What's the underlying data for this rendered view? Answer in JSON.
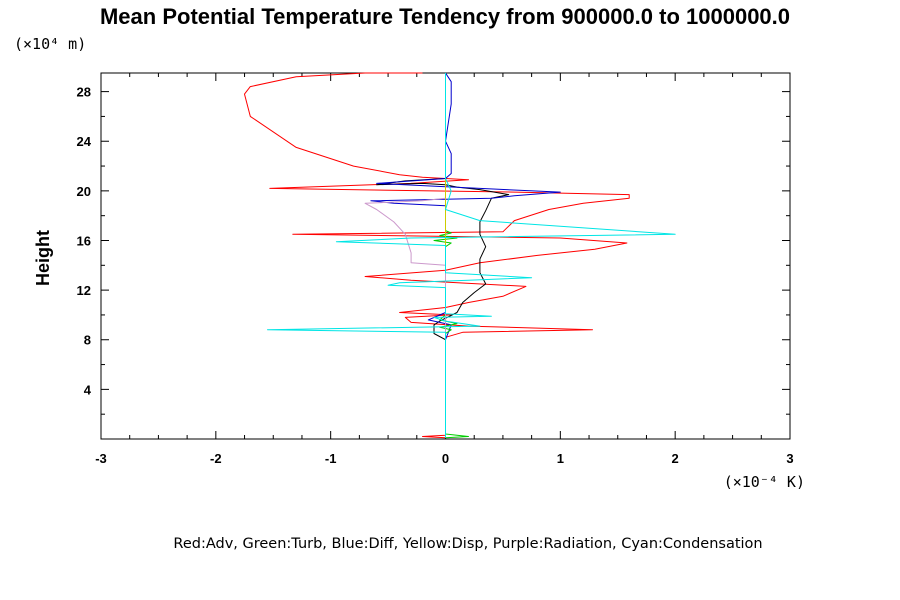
{
  "chart_data": {
    "type": "line",
    "title": "Mean Potential Temperature Tendency from 900000.0 to 1000000.0",
    "ylabel": "Height",
    "y_scale_label": "(×10⁴ m)",
    "x_scale_label": "(×10⁻⁴ K)",
    "legend_text": "Red:Adv, Green:Turb, Blue:Diff, Yellow:Disp, Purple:Radiation, Cyan:Condensation",
    "xlim": [
      -3,
      3
    ],
    "ylim": [
      0,
      29.5
    ],
    "x_ticks": [
      -3,
      -2,
      -1,
      0,
      1,
      2,
      3
    ],
    "x_tick_labels": [
      "-3",
      "-2",
      "-1",
      "0",
      "1",
      "2",
      "3"
    ],
    "y_ticks": [
      4,
      8,
      12,
      16,
      20,
      24,
      28
    ],
    "y_tick_labels": [
      "4",
      "8",
      "12",
      "16",
      "20",
      "24",
      "28"
    ],
    "grid": false,
    "series": [
      {
        "color": "#ff0000",
        "points": [
          [
            0.0,
            0.1
          ],
          [
            -0.2,
            0.2
          ],
          [
            0.0,
            0.3
          ],
          [
            0.0,
            5.5
          ],
          [
            0.0,
            8.2
          ],
          [
            0.15,
            8.6
          ],
          [
            1.28,
            8.8
          ],
          [
            0.2,
            9.1
          ],
          [
            -0.3,
            9.4
          ],
          [
            -0.35,
            9.8
          ],
          [
            0.05,
            10.0
          ],
          [
            -0.4,
            10.2
          ],
          [
            0.0,
            10.6
          ],
          [
            0.2,
            11.0
          ],
          [
            0.5,
            11.5
          ],
          [
            0.7,
            12.3
          ],
          [
            -0.3,
            12.8
          ],
          [
            -0.7,
            13.1
          ],
          [
            0.0,
            13.6
          ],
          [
            0.3,
            14.2
          ],
          [
            0.8,
            14.8
          ],
          [
            1.3,
            15.3
          ],
          [
            1.58,
            15.8
          ],
          [
            1.0,
            16.2
          ],
          [
            -1.33,
            16.5
          ],
          [
            0.5,
            16.7
          ],
          [
            0.6,
            17.6
          ],
          [
            0.9,
            18.5
          ],
          [
            1.2,
            19.0
          ],
          [
            1.6,
            19.4
          ],
          [
            1.6,
            19.7
          ],
          [
            0.6,
            19.9
          ],
          [
            -1.53,
            20.2
          ],
          [
            -0.3,
            20.6
          ],
          [
            0.2,
            20.9
          ],
          [
            -0.2,
            21.1
          ],
          [
            -0.4,
            21.3
          ],
          [
            -0.8,
            22.0
          ],
          [
            -1.3,
            23.5
          ],
          [
            -1.7,
            26.0
          ],
          [
            -1.75,
            27.8
          ],
          [
            -1.7,
            28.4
          ],
          [
            -1.3,
            29.2
          ],
          [
            -0.7,
            29.5
          ],
          [
            -0.2,
            29.6
          ]
        ]
      },
      {
        "color": "#000000",
        "points": [
          [
            0.0,
            0.1
          ],
          [
            0.0,
            5.5
          ],
          [
            0.0,
            8.0
          ],
          [
            -0.1,
            8.5
          ],
          [
            -0.1,
            9.2
          ],
          [
            -0.05,
            9.5
          ],
          [
            0.1,
            10.2
          ],
          [
            0.15,
            11.0
          ],
          [
            0.25,
            11.8
          ],
          [
            0.35,
            12.5
          ],
          [
            0.3,
            13.4
          ],
          [
            0.3,
            14.5
          ],
          [
            0.35,
            15.5
          ],
          [
            0.3,
            16.5
          ],
          [
            0.3,
            17.5
          ],
          [
            0.35,
            18.4
          ],
          [
            0.4,
            19.4
          ],
          [
            0.55,
            19.7
          ],
          [
            0.3,
            20.1
          ],
          [
            0.1,
            20.3
          ],
          [
            0.0,
            20.5
          ],
          [
            -0.2,
            20.6
          ],
          [
            -0.6,
            20.5
          ],
          [
            -0.35,
            20.8
          ],
          [
            0.0,
            21.0
          ],
          [
            0.0,
            29.6
          ]
        ]
      },
      {
        "color": "#0000cc",
        "points": [
          [
            0.0,
            0.1
          ],
          [
            0.0,
            5.5
          ],
          [
            0.0,
            8.0
          ],
          [
            0.05,
            9.2
          ],
          [
            -0.15,
            9.6
          ],
          [
            0.0,
            10.2
          ],
          [
            0.0,
            12.0
          ],
          [
            0.0,
            18.8
          ],
          [
            -0.45,
            19.0
          ],
          [
            -0.65,
            19.2
          ],
          [
            0.4,
            19.4
          ],
          [
            0.6,
            19.6
          ],
          [
            1.0,
            19.9
          ],
          [
            0.3,
            20.2
          ],
          [
            -0.6,
            20.6
          ],
          [
            0.0,
            21.0
          ],
          [
            0.05,
            21.4
          ],
          [
            0.05,
            23.0
          ],
          [
            0.0,
            24.0
          ],
          [
            0.05,
            27.0
          ],
          [
            0.05,
            28.8
          ],
          [
            0.0,
            29.6
          ]
        ]
      },
      {
        "color": "#00cc00",
        "points": [
          [
            0.0,
            0.1
          ],
          [
            0.2,
            0.2
          ],
          [
            0.0,
            0.4
          ],
          [
            0.0,
            8.5
          ],
          [
            0.05,
            8.8
          ],
          [
            -0.05,
            9.0
          ],
          [
            0.1,
            9.3
          ],
          [
            -0.05,
            9.6
          ],
          [
            0.0,
            10.0
          ],
          [
            0.0,
            15.5
          ],
          [
            0.05,
            15.8
          ],
          [
            -0.1,
            16.0
          ],
          [
            0.1,
            16.2
          ],
          [
            -0.05,
            16.4
          ],
          [
            0.05,
            16.6
          ],
          [
            0.0,
            16.8
          ],
          [
            0.0,
            29.6
          ]
        ]
      },
      {
        "color": "#cccc00",
        "points": [
          [
            0.0,
            0.1
          ],
          [
            0.0,
            29.6
          ]
        ]
      },
      {
        "color": "#cc99cc",
        "points": [
          [
            0.0,
            5.0
          ],
          [
            0.0,
            14.0
          ],
          [
            -0.3,
            14.2
          ],
          [
            -0.3,
            15.0
          ],
          [
            -0.35,
            16.5
          ],
          [
            -0.45,
            17.5
          ],
          [
            -0.6,
            18.5
          ],
          [
            -0.7,
            19.0
          ],
          [
            -0.2,
            19.2
          ],
          [
            0.0,
            19.4
          ]
        ]
      },
      {
        "color": "#00e5e5",
        "points": [
          [
            0.0,
            0.1
          ],
          [
            0.0,
            8.6
          ],
          [
            -1.55,
            8.8
          ],
          [
            0.3,
            9.1
          ],
          [
            0.0,
            9.5
          ],
          [
            -0.1,
            9.8
          ],
          [
            0.4,
            9.9
          ],
          [
            0.0,
            10.1
          ],
          [
            0.0,
            12.2
          ],
          [
            -0.5,
            12.4
          ],
          [
            -0.4,
            12.6
          ],
          [
            0.2,
            12.8
          ],
          [
            0.75,
            13.0
          ],
          [
            0.0,
            13.4
          ],
          [
            0.0,
            15.6
          ],
          [
            -0.95,
            15.9
          ],
          [
            -0.3,
            16.2
          ],
          [
            2.0,
            16.5
          ],
          [
            0.3,
            17.6
          ],
          [
            0.0,
            18.5
          ],
          [
            0.05,
            20.0
          ],
          [
            0.0,
            21.0
          ],
          [
            0.0,
            29.6
          ]
        ]
      }
    ]
  }
}
